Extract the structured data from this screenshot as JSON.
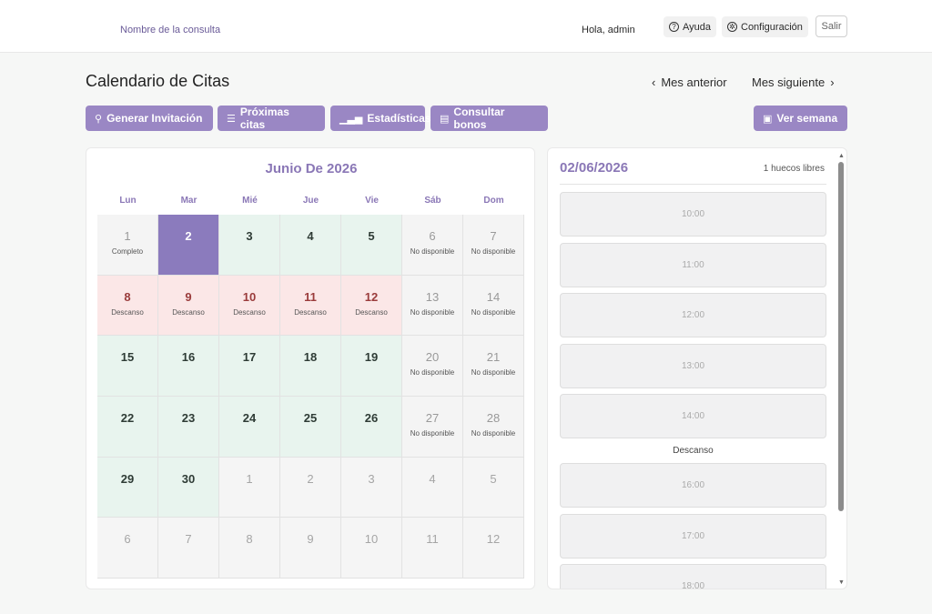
{
  "topbar": {
    "brand": "Nombre de la consulta",
    "greeting": "Hola, admin",
    "help_label": "Ayuda",
    "config_label": "Configuración",
    "logout_label": "Salir"
  },
  "header": {
    "title": "Calendario de Citas",
    "prev_month": "Mes anterior",
    "next_month": "Mes siguiente"
  },
  "actions": {
    "invite": "Generar Invitación",
    "upcoming": "Próximas citas",
    "stats": "Estadísticas",
    "bonos": "Consultar bonos",
    "week": "Ver semana"
  },
  "calendar": {
    "month_title": "Junio De 2026",
    "weekdays": [
      "Lun",
      "Mar",
      "Mié",
      "Jue",
      "Vie",
      "Sáb",
      "Dom"
    ],
    "days": [
      {
        "n": "1",
        "sub": "Completo",
        "state": "full"
      },
      {
        "n": "2",
        "sub": "",
        "state": "sel"
      },
      {
        "n": "3",
        "sub": "",
        "state": "avail"
      },
      {
        "n": "4",
        "sub": "",
        "state": "avail"
      },
      {
        "n": "5",
        "sub": "",
        "state": "avail"
      },
      {
        "n": "6",
        "sub": "No disponible",
        "state": "na"
      },
      {
        "n": "7",
        "sub": "No disponible",
        "state": "na"
      },
      {
        "n": "8",
        "sub": "Descanso",
        "state": "rest"
      },
      {
        "n": "9",
        "sub": "Descanso",
        "state": "rest"
      },
      {
        "n": "10",
        "sub": "Descanso",
        "state": "rest"
      },
      {
        "n": "11",
        "sub": "Descanso",
        "state": "rest"
      },
      {
        "n": "12",
        "sub": "Descanso",
        "state": "rest"
      },
      {
        "n": "13",
        "sub": "No disponible",
        "state": "na"
      },
      {
        "n": "14",
        "sub": "No disponible",
        "state": "na"
      },
      {
        "n": "15",
        "sub": "",
        "state": "avail"
      },
      {
        "n": "16",
        "sub": "",
        "state": "avail"
      },
      {
        "n": "17",
        "sub": "",
        "state": "avail"
      },
      {
        "n": "18",
        "sub": "",
        "state": "avail"
      },
      {
        "n": "19",
        "sub": "",
        "state": "avail"
      },
      {
        "n": "20",
        "sub": "No disponible",
        "state": "na"
      },
      {
        "n": "21",
        "sub": "No disponible",
        "state": "na"
      },
      {
        "n": "22",
        "sub": "",
        "state": "avail"
      },
      {
        "n": "23",
        "sub": "",
        "state": "avail"
      },
      {
        "n": "24",
        "sub": "",
        "state": "avail"
      },
      {
        "n": "25",
        "sub": "",
        "state": "avail"
      },
      {
        "n": "26",
        "sub": "",
        "state": "avail"
      },
      {
        "n": "27",
        "sub": "No disponible",
        "state": "na"
      },
      {
        "n": "28",
        "sub": "No disponible",
        "state": "na"
      },
      {
        "n": "29",
        "sub": "",
        "state": "avail"
      },
      {
        "n": "30",
        "sub": "",
        "state": "avail"
      },
      {
        "n": "1",
        "sub": "",
        "state": "other"
      },
      {
        "n": "2",
        "sub": "",
        "state": "other"
      },
      {
        "n": "3",
        "sub": "",
        "state": "other"
      },
      {
        "n": "4",
        "sub": "",
        "state": "other"
      },
      {
        "n": "5",
        "sub": "",
        "state": "other"
      },
      {
        "n": "6",
        "sub": "",
        "state": "other"
      },
      {
        "n": "7",
        "sub": "",
        "state": "other"
      },
      {
        "n": "8",
        "sub": "",
        "state": "other"
      },
      {
        "n": "9",
        "sub": "",
        "state": "other"
      },
      {
        "n": "10",
        "sub": "",
        "state": "other"
      },
      {
        "n": "11",
        "sub": "",
        "state": "other"
      },
      {
        "n": "12",
        "sub": "",
        "state": "other"
      }
    ]
  },
  "slots": {
    "date": "02/06/2026",
    "free": "1 huecos libres",
    "times": [
      "10:00",
      "11:00",
      "12:00",
      "13:00",
      "14:00",
      "16:00",
      "17:00",
      "18:00"
    ],
    "rest_label": "Descanso"
  },
  "colors": {
    "accent": "#9a87c4",
    "selected_day": "#8b7bbd",
    "available": "#e8f4ee",
    "rest": "#fbe7e7"
  }
}
